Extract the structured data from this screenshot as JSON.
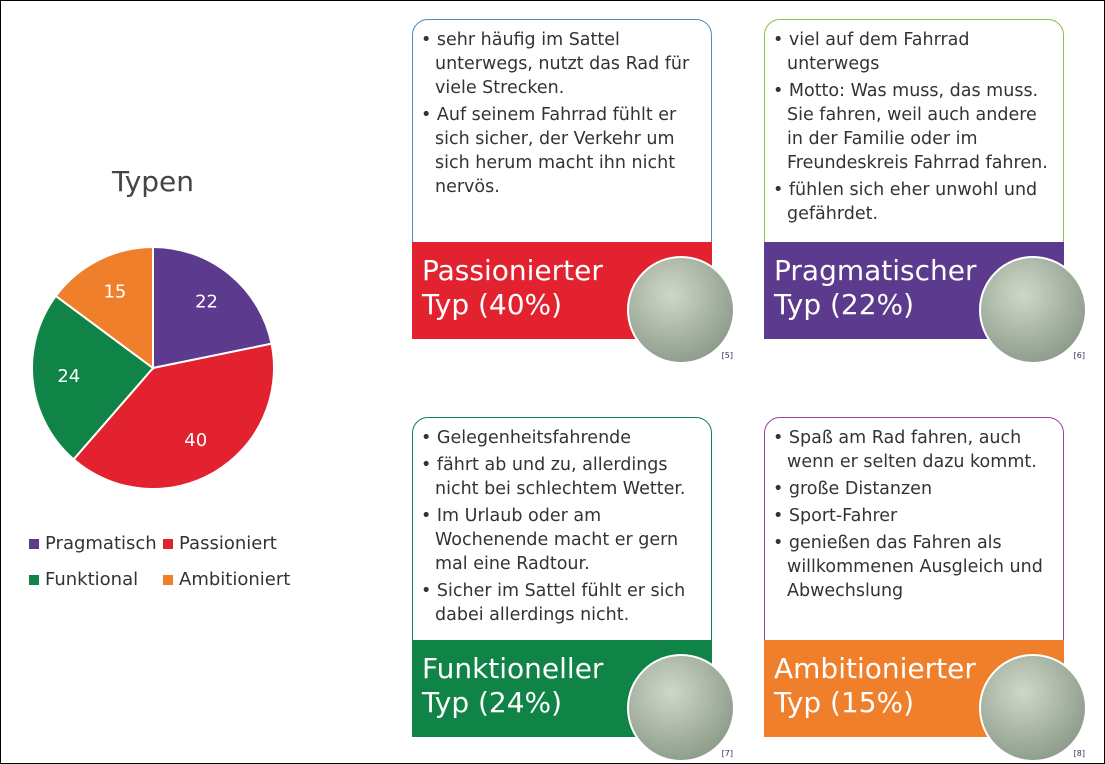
{
  "chart_data": {
    "type": "pie",
    "title": "Typen",
    "categories": [
      "Pragmatisch",
      "Passioniert",
      "Funktional",
      "Ambitioniert"
    ],
    "values": [
      22,
      40,
      24,
      15
    ],
    "colors": [
      "#5c3a8e",
      "#e32230",
      "#0f8446",
      "#f07f2b"
    ]
  },
  "cards": [
    {
      "bullets": [
        "sehr häufig im Sattel unterwegs, nutzt das Rad für viele Strecken.",
        "Auf seinem Fahrrad fühlt er sich sicher, der Verkehr um sich herum macht ihn nicht nervös."
      ],
      "title": "Passionierter Typ (40%)",
      "ref": "[5]",
      "color": "#e32230",
      "border": "#4a90c8"
    },
    {
      "bullets": [
        "viel auf dem Fahrrad unterwegs",
        "Motto: Was muss, das muss. Sie fahren, weil auch andere in der Familie oder im Freundeskreis Fahrrad fahren.",
        "fühlen sich eher unwohl und gefährdet."
      ],
      "title": "Pragmatischer Typ (22%)",
      "ref": "[6]",
      "color": "#5c3a8e",
      "border": "#8cc04b"
    },
    {
      "bullets": [
        "Gelegenheitsfahrende",
        "fährt ab und zu, allerdings nicht bei schlechtem Wetter.",
        "Im Urlaub oder am Wochenende macht er gern mal eine Radtour.",
        "Sicher im Sattel fühlt er sich dabei allerdings nicht."
      ],
      "title": "Funktioneller Typ (24%)",
      "ref": "[7]",
      "color": "#0f8446",
      "border": "#0f8446"
    },
    {
      "bullets": [
        "Spaß am Rad fahren, auch wenn er selten dazu kommt.",
        "große Distanzen",
        "Sport-Fahrer",
        "genießen das Fahren als willkommenen Ausgleich und Abwechslung"
      ],
      "title": "Ambitionierter Typ (15%)",
      "ref": "[8]",
      "color": "#f07f2b",
      "border": "#a040a0"
    }
  ]
}
